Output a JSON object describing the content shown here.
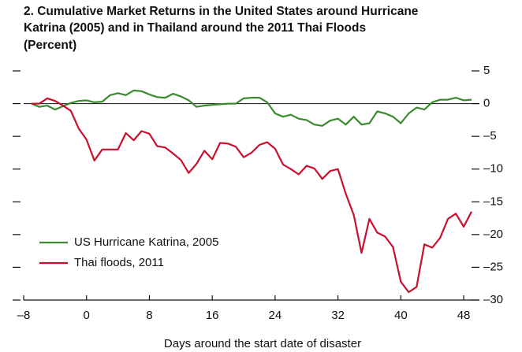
{
  "chart_data": {
    "type": "line",
    "title": [
      "2. Cumulative Market Returns in the United States around Hurricane",
      "Katrina (2005) and in Thailand around the 2011 Thai Floods",
      "(Percent)"
    ],
    "x_label": "Days around the start date of disaster",
    "x": [
      -7,
      -6,
      -5,
      -4,
      -3,
      -2,
      -1,
      0,
      1,
      2,
      3,
      4,
      5,
      6,
      7,
      8,
      9,
      10,
      11,
      12,
      13,
      14,
      15,
      16,
      17,
      18,
      19,
      20,
      21,
      22,
      23,
      24,
      25,
      26,
      27,
      28,
      29,
      30,
      31,
      32,
      33,
      34,
      35,
      36,
      37,
      38,
      39,
      40,
      41,
      42,
      43,
      44,
      45,
      46,
      47,
      48,
      49
    ],
    "series": [
      {
        "name": "US Hurricane Katrina, 2005",
        "color": "#3a8a2e",
        "values": [
          0,
          -0.5,
          -0.3,
          -0.9,
          -0.4,
          0.1,
          0.4,
          0.5,
          0.2,
          0.3,
          1.3,
          1.6,
          1.3,
          2.0,
          1.9,
          1.4,
          1.0,
          0.9,
          1.5,
          1.1,
          0.5,
          -0.5,
          -0.3,
          -0.2,
          -0.1,
          0,
          0,
          0.8,
          0.9,
          0.9,
          0.2,
          -1.5,
          -2.0,
          -1.7,
          -2.3,
          -2.5,
          -3.2,
          -3.4,
          -2.6,
          -2.3,
          -3.2,
          -2.0,
          -3.2,
          -3.0,
          -1.2,
          -1.5,
          -2.0,
          -3.0,
          -1.5,
          -0.6,
          -0.9,
          0.2,
          0.6,
          0.6,
          0.9,
          0.5,
          0.6
        ]
      },
      {
        "name": "Thai floods, 2011",
        "color": "#c8102e",
        "values": [
          0,
          0,
          0.8,
          0.4,
          -0.3,
          -1.1,
          -3.8,
          -5.5,
          -8.7,
          -7,
          -7,
          -7,
          -4.5,
          -5.6,
          -4.2,
          -4.6,
          -6.5,
          -6.7,
          -7.6,
          -8.6,
          -10.6,
          -9.2,
          -7.2,
          -8.5,
          -6,
          -6.1,
          -6.6,
          -8.2,
          -7.5,
          -6.3,
          -5.9,
          -6.9,
          -9.3,
          -10,
          -10.8,
          -9.5,
          -9.9,
          -11.5,
          -10.3,
          -10,
          -13.8,
          -17,
          -22.8,
          -17.6,
          -19.7,
          -20.3,
          -21.9,
          -27.2,
          -28.8,
          -28,
          -21.5,
          -22,
          -20.5,
          -17.6,
          -16.8,
          -18.8,
          -16.5
        ]
      }
    ],
    "xlim": [
      -8,
      50
    ],
    "xticks": [
      {
        "value": -8,
        "label": "–8"
      },
      0,
      8,
      16,
      24,
      32,
      40,
      48
    ],
    "ylim": [
      -30,
      5
    ],
    "yticks": [
      5,
      0,
      {
        "value": -5,
        "label": "–5"
      },
      {
        "value": -10,
        "label": "–10"
      },
      {
        "value": -15,
        "label": "–15"
      },
      {
        "value": -20,
        "label": "–20"
      },
      {
        "value": -25,
        "label": "–25"
      },
      {
        "value": -30,
        "label": "–30"
      }
    ],
    "legend": "lower-left"
  }
}
